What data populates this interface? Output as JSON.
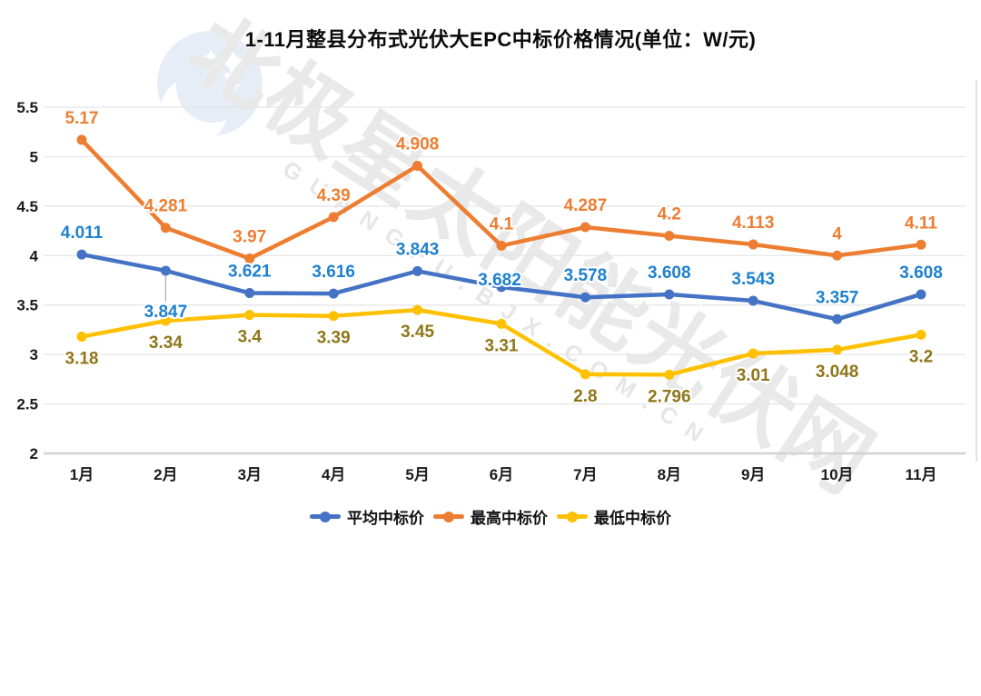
{
  "title": {
    "text": "1-11月整县分布式光伏大EPC中标价格情况(单位：W/元)"
  },
  "watermark": {
    "logo": "bjx-moon-stars-logo",
    "text_cn": "北极星太阳能光伏网",
    "text_en": "GUANGFU.BJX.COM.CN"
  },
  "colors": {
    "grid": "#E4E4E4",
    "axis": "#D2D2D2",
    "right_border": "#D8D8D8",
    "leader_line": "#A9A9A9",
    "title_text": "#0A0A0A",
    "tick_text": "#1A1A1A"
  },
  "chart_data": {
    "type": "line",
    "title": "1-11月整县分布式光伏大EPC中标价格情况(单位：W/元)",
    "categories": [
      "1月",
      "2月",
      "3月",
      "4月",
      "5月",
      "6月",
      "7月",
      "8月",
      "9月",
      "10月",
      "11月"
    ],
    "series": [
      {
        "name": "平均中标价",
        "color": "#4472C4",
        "label_color": "#1E81CE",
        "values": [
          4.011,
          3.847,
          3.621,
          3.616,
          3.843,
          3.682,
          3.578,
          3.608,
          3.543,
          3.357,
          3.608
        ]
      },
      {
        "name": "最高中标价",
        "color": "#ED7D31",
        "label_color": "#ED7D31",
        "values": [
          5.17,
          4.281,
          3.97,
          4.39,
          4.908,
          4.1,
          4.287,
          4.2,
          4.113,
          4,
          4.11
        ]
      },
      {
        "name": "最低中标价",
        "color": "#FFC000",
        "label_color": "#8F7618",
        "values": [
          3.18,
          3.34,
          3.4,
          3.39,
          3.45,
          3.31,
          2.8,
          2.796,
          3.01,
          3.048,
          3.2
        ]
      }
    ],
    "xlabel": "",
    "ylabel": "",
    "ylim": [
      2,
      5.5
    ],
    "ytick_step": 0.5,
    "grid": true,
    "legend_position": "bottom",
    "label_placement": {
      "default_by_series": [
        "above",
        "above",
        "below"
      ],
      "overrides": [
        {
          "series": 0,
          "index": 1,
          "mode": "below-leader"
        },
        {
          "series": 0,
          "index": 5,
          "mode": "on-point"
        }
      ]
    }
  }
}
